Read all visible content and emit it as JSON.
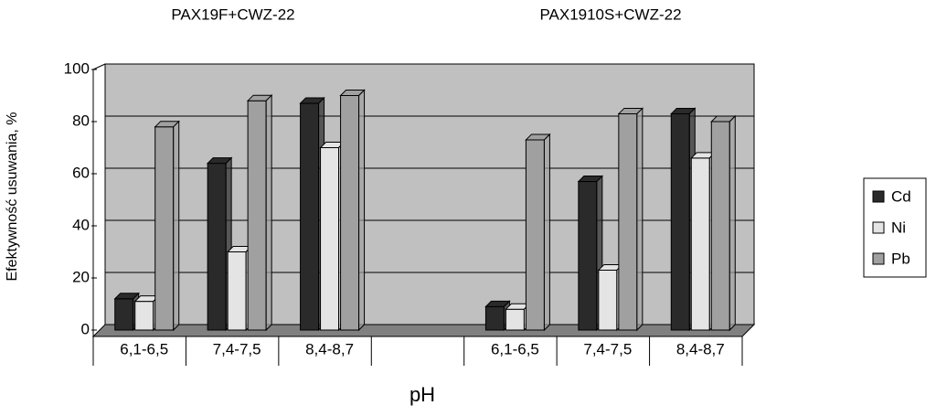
{
  "chart_data": {
    "type": "bar",
    "annotations": [
      "PAX19F+CWZ-22",
      "PAX1910S+CWZ-22"
    ],
    "y_label": "Efektywność usuwania, %",
    "x_label": "pH",
    "categories": [
      "6,1-6,5",
      "7,4-7,5",
      "8,4-8,7",
      null,
      "6,1-6,5",
      "7,4-7,5",
      "8,4-8,7"
    ],
    "series": [
      {
        "name": "Cd",
        "color": "#2a2a2a",
        "values": [
          12,
          64,
          87,
          null,
          9,
          57,
          83
        ]
      },
      {
        "name": "Ni",
        "color": "#e4e4e4",
        "values": [
          11,
          30,
          70,
          null,
          8,
          23,
          66
        ]
      },
      {
        "name": "Pb",
        "color": "#a0a0a0",
        "values": [
          78,
          88,
          90,
          null,
          73,
          83,
          80
        ]
      }
    ],
    "ylim": [
      0,
      100
    ],
    "yticks": [
      0,
      20,
      40,
      60,
      80,
      100
    ],
    "grid": true,
    "legend": "right"
  }
}
